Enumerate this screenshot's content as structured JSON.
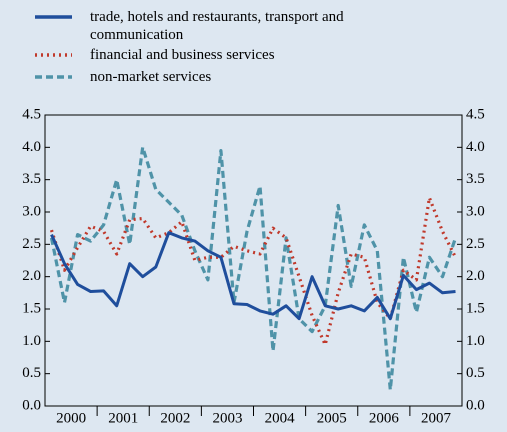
{
  "chart_data": {
    "type": "line",
    "categories": [
      "2000",
      null,
      null,
      null,
      "2001",
      null,
      null,
      null,
      "2002",
      null,
      null,
      null,
      "2003",
      null,
      null,
      null,
      "2004",
      null,
      null,
      null,
      "2005",
      null,
      null,
      null,
      "2006",
      null,
      null,
      null,
      "2007",
      null,
      null,
      null
    ],
    "series": [
      {
        "name": "trade, hotels and restaurants, transport and communication",
        "color": "#1f4e9c",
        "style": "solid",
        "values": [
          2.65,
          2.2,
          1.88,
          1.77,
          1.78,
          1.55,
          2.2,
          2.0,
          2.15,
          2.68,
          2.6,
          2.55,
          2.4,
          2.3,
          1.58,
          1.57,
          1.47,
          1.42,
          1.55,
          1.35,
          2.0,
          1.55,
          1.5,
          1.55,
          1.47,
          1.68,
          1.35,
          2.02,
          1.8,
          1.9,
          1.75,
          1.77
        ]
      },
      {
        "name": "financial and business services",
        "color": "#c0392b",
        "style": "dotted",
        "values": [
          2.72,
          2.1,
          2.45,
          2.78,
          2.7,
          2.35,
          2.88,
          2.9,
          2.6,
          2.68,
          2.85,
          2.25,
          2.3,
          2.3,
          2.47,
          2.4,
          2.35,
          2.75,
          2.6,
          2.0,
          1.4,
          0.95,
          1.75,
          2.35,
          2.3,
          1.6,
          1.35,
          2.1,
          1.95,
          3.22,
          2.7,
          2.3
        ]
      },
      {
        "name": "non-market services",
        "color": "#4f93a8",
        "style": "dashed",
        "values": [
          2.6,
          1.6,
          2.65,
          2.55,
          2.8,
          3.5,
          2.5,
          4.0,
          3.35,
          3.15,
          2.95,
          2.4,
          1.95,
          3.95,
          1.6,
          2.7,
          3.4,
          0.85,
          2.6,
          1.35,
          1.15,
          1.55,
          3.1,
          1.85,
          2.8,
          2.4,
          0.25,
          2.3,
          1.45,
          2.3,
          2.0,
          2.6
        ]
      }
    ],
    "ylim": [
      0,
      4.5
    ],
    "yticks": [
      {
        "value": 0,
        "label": "0.0"
      },
      0.5,
      {
        "value": 1,
        "label": "1.0"
      },
      1.5,
      {
        "value": 2,
        "label": "2.0"
      },
      2.5,
      {
        "value": 3,
        "label": "3.0"
      },
      3.5,
      {
        "value": 4,
        "label": "4.0"
      },
      4.5
    ],
    "y2lim": [
      0,
      4.5
    ],
    "y2ticks": [
      {
        "value": 0,
        "label": "0.0"
      },
      0.5,
      {
        "value": 1,
        "label": "1.0"
      },
      1.5,
      {
        "value": 2,
        "label": "2.0"
      },
      2.5,
      {
        "value": 3,
        "label": "3.0"
      },
      3.5,
      {
        "value": 4,
        "label": "4.0"
      },
      4.5
    ],
    "grid": false
  }
}
